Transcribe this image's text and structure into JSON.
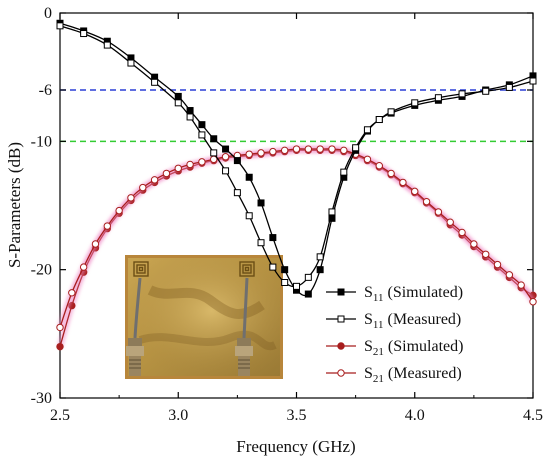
{
  "chart_data": {
    "type": "line",
    "xlabel": "Frequency (GHz)",
    "ylabel": "S-Parameters (dB)",
    "xlim": [
      2.5,
      4.5
    ],
    "ylim": [
      -30,
      0
    ],
    "x_ticks": [
      2.5,
      3.0,
      3.5,
      4.0,
      4.5
    ],
    "x_tick_labels": [
      "2.5",
      "3.0",
      "3.5",
      "4.0",
      "4.5"
    ],
    "y_ticks": [
      0,
      -6,
      -10,
      -20,
      -30
    ],
    "y_tick_labels": [
      "0",
      "-6",
      "-10",
      "-20",
      "-30"
    ],
    "grid": false,
    "legend_position": "bottom-right",
    "reference_lines": [
      {
        "y": -6,
        "color": "#2b3fd6",
        "style": "dashed"
      },
      {
        "y": -10,
        "color": "#33cc33",
        "style": "dashed"
      }
    ],
    "series": [
      {
        "name": "S11 (Simulated)",
        "label_main": "S",
        "label_sub": "11",
        "label_rest": " (Simulated)",
        "color": "#000000",
        "marker": "square-filled",
        "x": [
          2.5,
          2.6,
          2.7,
          2.8,
          2.9,
          3.0,
          3.05,
          3.1,
          3.15,
          3.2,
          3.25,
          3.3,
          3.35,
          3.4,
          3.45,
          3.5,
          3.55,
          3.6,
          3.65,
          3.7,
          3.75,
          3.8,
          3.85,
          3.9,
          4.0,
          4.1,
          4.2,
          4.3,
          4.4,
          4.5
        ],
        "y": [
          -0.8,
          -1.4,
          -2.2,
          -3.5,
          -5.0,
          -6.5,
          -7.6,
          -8.7,
          -9.8,
          -10.6,
          -11.5,
          -12.8,
          -14.8,
          -17.5,
          -20.0,
          -21.6,
          -21.9,
          -20.0,
          -16.0,
          -12.8,
          -10.7,
          -9.2,
          -8.3,
          -7.8,
          -7.2,
          -6.8,
          -6.5,
          -6.0,
          -5.6,
          -4.9
        ]
      },
      {
        "name": "S11 (Measured)",
        "label_main": "S",
        "label_sub": "11",
        "label_rest": " (Measured)",
        "color": "#000000",
        "marker": "square-open",
        "x": [
          2.5,
          2.6,
          2.7,
          2.8,
          2.9,
          3.0,
          3.05,
          3.1,
          3.15,
          3.2,
          3.25,
          3.3,
          3.35,
          3.4,
          3.45,
          3.5,
          3.55,
          3.6,
          3.65,
          3.7,
          3.75,
          3.8,
          3.85,
          3.9,
          4.0,
          4.1,
          4.2,
          4.3,
          4.4,
          4.5
        ],
        "y": [
          -1.0,
          -1.6,
          -2.5,
          -3.9,
          -5.4,
          -7.0,
          -8.1,
          -9.5,
          -10.9,
          -12.3,
          -14.0,
          -15.8,
          -17.9,
          -19.8,
          -21.0,
          -21.3,
          -20.6,
          -19.0,
          -15.5,
          -12.4,
          -10.5,
          -9.1,
          -8.3,
          -7.7,
          -7.0,
          -6.6,
          -6.3,
          -6.1,
          -5.8,
          -5.3
        ]
      },
      {
        "name": "S21 (Simulated)",
        "label_main": "S",
        "label_sub": "21",
        "label_rest": " (Simulated)",
        "color": "#a81e1e",
        "marker": "circle-filled",
        "x": [
          2.5,
          2.55,
          2.6,
          2.65,
          2.7,
          2.75,
          2.8,
          2.85,
          2.9,
          2.95,
          3.0,
          3.05,
          3.1,
          3.15,
          3.2,
          3.25,
          3.3,
          3.35,
          3.4,
          3.45,
          3.5,
          3.55,
          3.6,
          3.65,
          3.7,
          3.75,
          3.8,
          3.85,
          3.9,
          3.95,
          4.0,
          4.05,
          4.1,
          4.15,
          4.2,
          4.25,
          4.3,
          4.35,
          4.4,
          4.45,
          4.5
        ],
        "y": [
          -26.0,
          -22.8,
          -20.2,
          -18.3,
          -16.8,
          -15.6,
          -14.6,
          -13.8,
          -13.2,
          -12.7,
          -12.3,
          -12.0,
          -11.7,
          -11.5,
          -11.3,
          -11.2,
          -11.1,
          -11.0,
          -10.9,
          -10.8,
          -10.7,
          -10.7,
          -10.7,
          -10.7,
          -10.8,
          -11.1,
          -11.5,
          -12.0,
          -12.6,
          -13.3,
          -14.0,
          -14.8,
          -15.6,
          -16.5,
          -17.3,
          -18.2,
          -19.0,
          -19.8,
          -20.6,
          -21.4,
          -22.0
        ]
      },
      {
        "name": "S21 (Measured)",
        "label_main": "S",
        "label_sub": "21",
        "label_rest": " (Measured)",
        "color": "#a81e1e",
        "marker": "circle-open",
        "x": [
          2.5,
          2.55,
          2.6,
          2.65,
          2.7,
          2.75,
          2.8,
          2.85,
          2.9,
          2.95,
          3.0,
          3.05,
          3.1,
          3.15,
          3.2,
          3.25,
          3.3,
          3.35,
          3.4,
          3.45,
          3.5,
          3.55,
          3.6,
          3.65,
          3.7,
          3.75,
          3.8,
          3.85,
          3.9,
          3.95,
          4.0,
          4.05,
          4.1,
          4.15,
          4.2,
          4.25,
          4.3,
          4.35,
          4.4,
          4.45,
          4.5
        ],
        "y": [
          -24.5,
          -21.8,
          -19.8,
          -18.0,
          -16.6,
          -15.4,
          -14.4,
          -13.6,
          -13.0,
          -12.5,
          -12.1,
          -11.8,
          -11.6,
          -11.4,
          -11.2,
          -11.1,
          -11.0,
          -10.9,
          -10.8,
          -10.7,
          -10.6,
          -10.6,
          -10.6,
          -10.6,
          -10.7,
          -11.0,
          -11.4,
          -11.9,
          -12.5,
          -13.2,
          -13.9,
          -14.7,
          -15.5,
          -16.3,
          -17.1,
          -18.0,
          -18.8,
          -19.6,
          -20.4,
          -21.2,
          -22.5
        ]
      }
    ]
  },
  "inset_photo": {
    "description_icon": "antenna-prototype-photo",
    "board_color": "#c8a24a",
    "board_dark": "#8a6a25",
    "connector_color": "#9c8a6a",
    "frame_color": "#b8863b"
  }
}
